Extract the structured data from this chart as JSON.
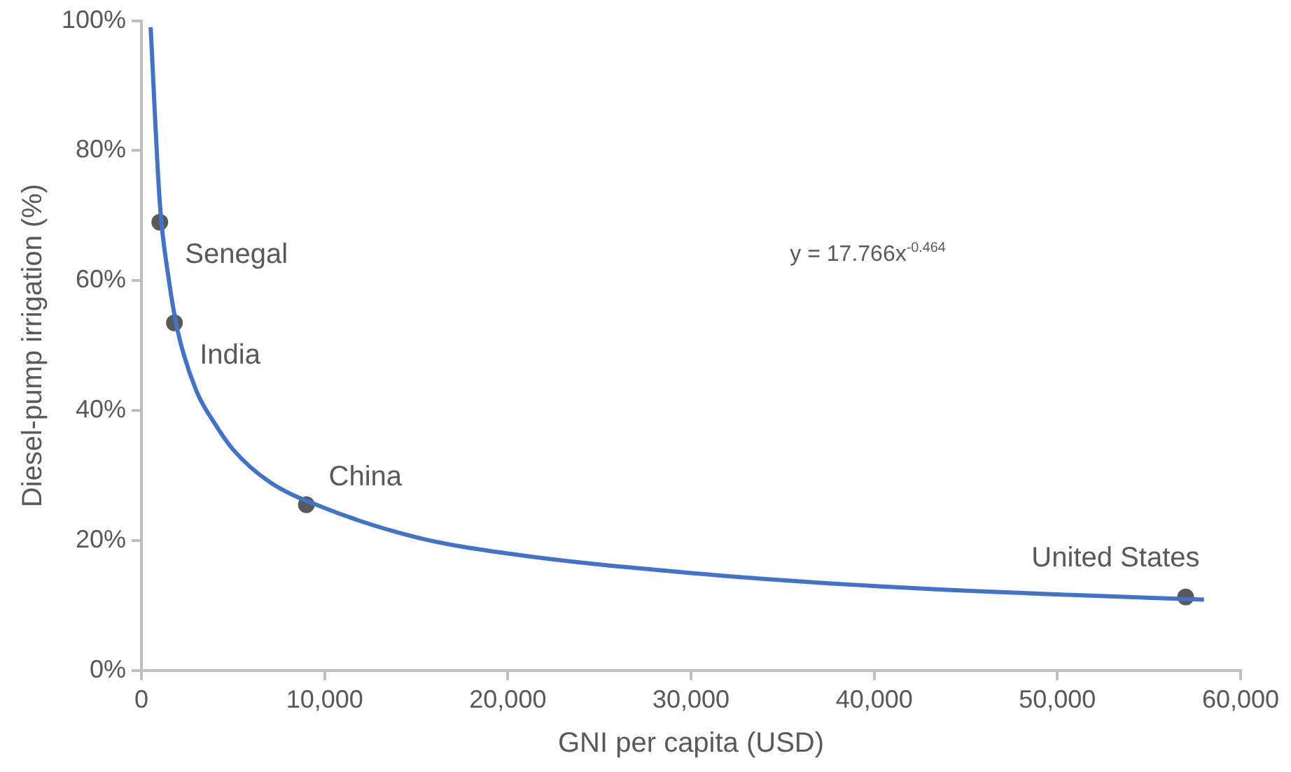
{
  "chart_data": {
    "type": "scatter",
    "xlabel": "GNI per capita (USD)",
    "ylabel": "Diesel-pump irrigation (%)",
    "xlim": [
      0,
      60000
    ],
    "xticks": [
      {
        "value": 0,
        "label": "0"
      },
      {
        "value": 10000,
        "label": "10,000"
      },
      {
        "value": 20000,
        "label": "20,000"
      },
      {
        "value": 30000,
        "label": "30,000"
      },
      {
        "value": 40000,
        "label": "40,000"
      },
      {
        "value": 50000,
        "label": "50,000"
      },
      {
        "value": 60000,
        "label": "60,000"
      }
    ],
    "ylim": [
      0,
      100
    ],
    "yticks": [
      {
        "value": 0,
        "label": "0%"
      },
      {
        "value": 20,
        "label": "20%"
      },
      {
        "value": 40,
        "label": "40%"
      },
      {
        "value": 60,
        "label": "60%"
      },
      {
        "value": 80,
        "label": "80%"
      },
      {
        "value": 100,
        "label": "100%"
      }
    ],
    "grid": false,
    "legend": false,
    "marker": "circle",
    "series": [
      {
        "type": "line",
        "color": "#4472c4",
        "marker": "none",
        "x": [
          500,
          1000,
          1500,
          2000,
          3000,
          4000,
          5000,
          7000,
          10000,
          15000,
          20000,
          30000,
          40000,
          50000,
          58000
        ],
        "values": [
          99,
          72,
          60,
          52,
          43,
          38,
          34,
          29,
          25,
          20.5,
          18,
          15,
          13,
          11.7,
          10.9
        ]
      },
      {
        "type": "scatter",
        "color": "#595959",
        "x": [
          1000,
          1800,
          9000,
          57000
        ],
        "values": [
          69,
          53.5,
          25.5,
          11.3
        ]
      }
    ],
    "annotations": [
      {
        "text": "Senegal",
        "x": 1000,
        "y": 69
      },
      {
        "text": "India",
        "x": 1800,
        "y": 53.5
      },
      {
        "text": "China",
        "x": 9000,
        "y": 25.5
      },
      {
        "text": "United States",
        "x": 57000,
        "y": 11.3
      },
      "y = 17.766x$^{-0.464}$"
    ]
  }
}
